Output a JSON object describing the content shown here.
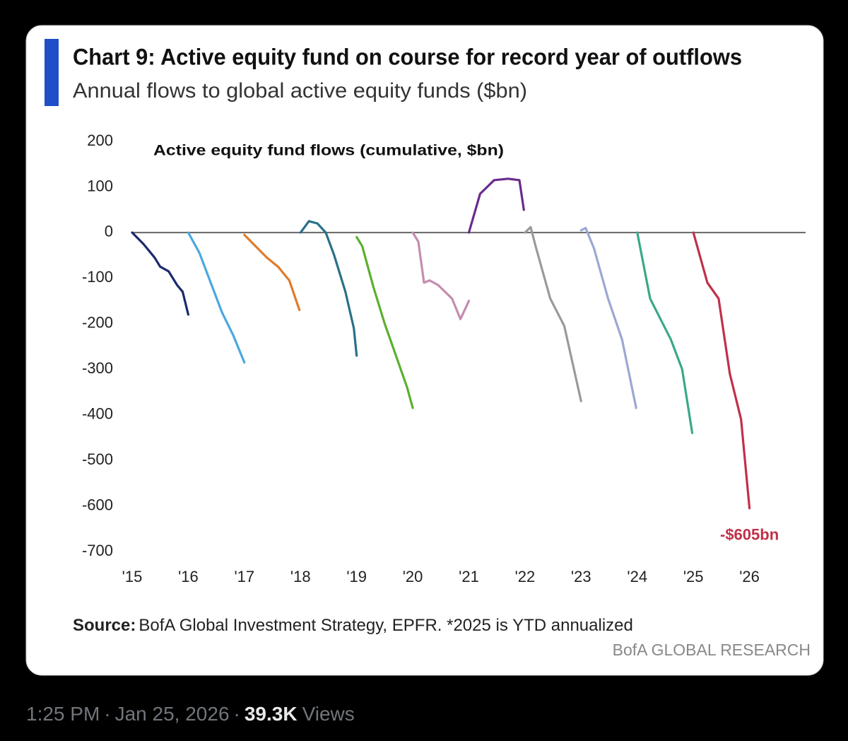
{
  "chart_data": {
    "type": "line",
    "title": "Chart 9: Active equity fund on course for record year of outflows",
    "subtitle": "Annual flows to global active equity funds ($bn)",
    "inner_title": "Active equity fund flows (cumulative, $bn)",
    "source_label": "Source:",
    "source": "BofA Global Investment Strategy, EPFR. *2025 is YTD annualized",
    "branding": "BofA GLOBAL RESEARCH",
    "xlim": [
      2015,
      2027
    ],
    "xticks": [
      {
        "value": 2015,
        "label": "'15"
      },
      {
        "value": 2016,
        "label": "'16"
      },
      {
        "value": 2017,
        "label": "'17"
      },
      {
        "value": 2018,
        "label": "'18"
      },
      {
        "value": 2019,
        "label": "'19"
      },
      {
        "value": 2020,
        "label": "'20"
      },
      {
        "value": 2021,
        "label": "'21"
      },
      {
        "value": 2022,
        "label": "'22"
      },
      {
        "value": 2023,
        "label": "'23"
      },
      {
        "value": 2024,
        "label": "'24"
      },
      {
        "value": 2025,
        "label": "'25"
      },
      {
        "value": 2026,
        "label": "'26"
      }
    ],
    "ylim": [
      -700,
      200
    ],
    "yticks": [
      200,
      100,
      0,
      -100,
      -200,
      -300,
      -400,
      -500,
      -600,
      -700
    ],
    "series": [
      {
        "color": "#1b2a6b",
        "x": [
          2015,
          2015.2,
          2015.4,
          2015.5,
          2015.65,
          2015.8,
          2015.9,
          2016
        ],
        "values": [
          0,
          -25,
          -55,
          -75,
          -85,
          -115,
          -130,
          -180
        ]
      },
      {
        "color": "#4aa8e0",
        "x": [
          2016,
          2016.2,
          2016.4,
          2016.6,
          2016.8,
          2017
        ],
        "values": [
          0,
          -45,
          -110,
          -175,
          -225,
          -285
        ]
      },
      {
        "color": "#e07b2a",
        "x": [
          2017,
          2017.2,
          2017.4,
          2017.6,
          2017.8,
          2017.98
        ],
        "values": [
          -5,
          -30,
          -55,
          -75,
          -105,
          -170
        ]
      },
      {
        "color": "#2a6f8a",
        "x": [
          2018,
          2018.15,
          2018.3,
          2018.45,
          2018.6,
          2018.8,
          2018.95,
          2019
        ],
        "values": [
          0,
          25,
          20,
          0,
          -50,
          -130,
          -210,
          -270
        ]
      },
      {
        "color": "#5ab02e",
        "x": [
          2019,
          2019.1,
          2019.3,
          2019.5,
          2019.7,
          2019.9,
          2020
        ],
        "values": [
          -10,
          -30,
          -120,
          -200,
          -270,
          -340,
          -385
        ]
      },
      {
        "color": "#c48cb0",
        "x": [
          2020,
          2020.1,
          2020.2,
          2020.3,
          2020.45,
          2020.7,
          2020.85,
          2021
        ],
        "values": [
          0,
          -20,
          -110,
          -105,
          -115,
          -145,
          -190,
          -150
        ]
      },
      {
        "color": "#6a2a8c",
        "x": [
          2021,
          2021.2,
          2021.45,
          2021.7,
          2021.9,
          2021.98
        ],
        "values": [
          0,
          85,
          115,
          118,
          115,
          50
        ]
      },
      {
        "color": "#9a9a9a",
        "x": [
          2022,
          2022.1,
          2022.2,
          2022.45,
          2022.7,
          2023
        ],
        "values": [
          0,
          12,
          -35,
          -145,
          -205,
          -370
        ]
      },
      {
        "color": "#9aa8d4",
        "x": [
          2023,
          2023.08,
          2023.23,
          2023.48,
          2023.73,
          2023.98
        ],
        "values": [
          5,
          10,
          -35,
          -145,
          -235,
          -385
        ]
      },
      {
        "color": "#3aa88a",
        "x": [
          2024,
          2024.23,
          2024.6,
          2024.8,
          2024.98
        ],
        "values": [
          0,
          -145,
          -235,
          -300,
          -440
        ]
      },
      {
        "color": "#c0304a",
        "x": [
          2025,
          2025.25,
          2025.45,
          2025.65,
          2025.85,
          2026
        ],
        "values": [
          0,
          -110,
          -145,
          -310,
          -410,
          -605
        ],
        "value_labels": [
          null,
          null,
          null,
          null,
          null,
          "-$605bn"
        ]
      }
    ]
  },
  "tweet": {
    "time": "1:25 PM",
    "separator": "·",
    "date": "Jan 25, 2026",
    "views": "39.3K",
    "views_label": "Views"
  }
}
